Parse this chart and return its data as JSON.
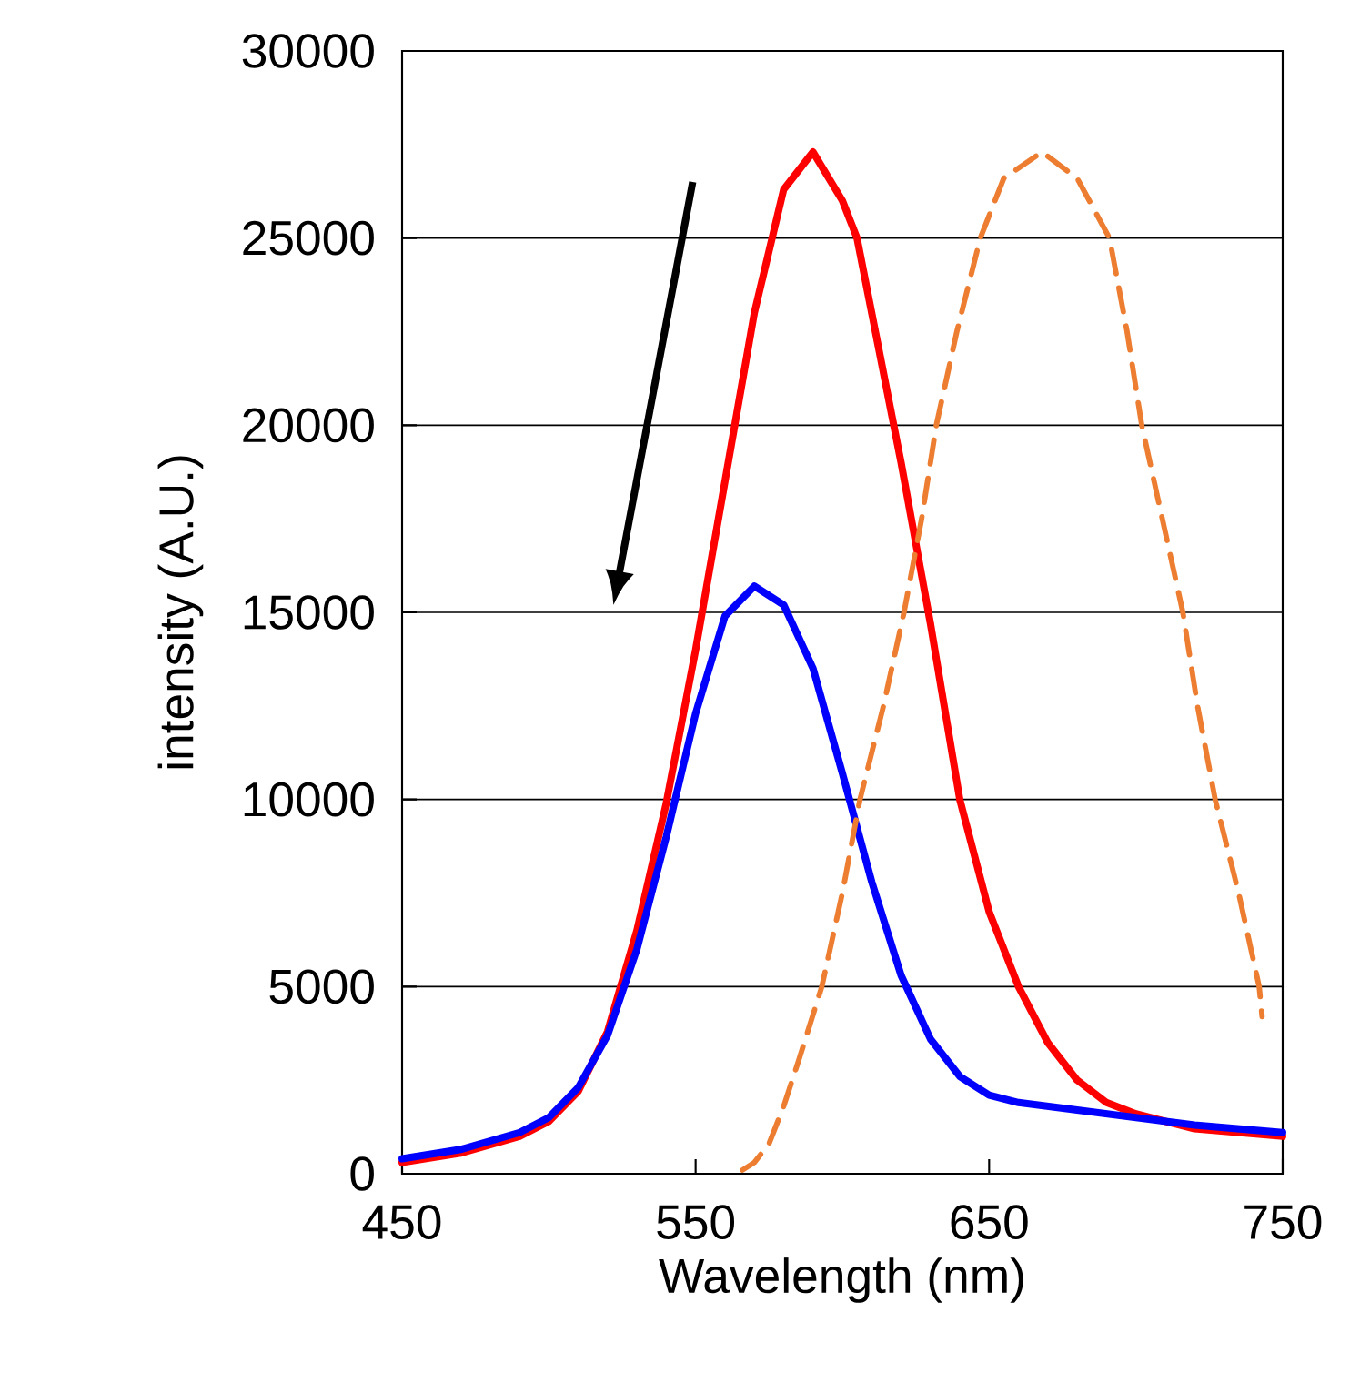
{
  "chart_data": {
    "type": "line",
    "xlabel": "Wavelength (nm)",
    "ylabel": "intensity (A.U.)",
    "xlim": [
      450,
      750
    ],
    "ylim": [
      0,
      30000
    ],
    "xticks": [
      450,
      550,
      650,
      750
    ],
    "yticks": [
      0,
      5000,
      10000,
      15000,
      20000,
      25000,
      30000
    ],
    "grid": "y",
    "marker": "none",
    "series": [
      {
        "color": "#ff0000",
        "line_style": "solid",
        "x": [
          450,
          470,
          490,
          500,
          510,
          520,
          530,
          540,
          550,
          560,
          570,
          580,
          590,
          600,
          605,
          610,
          620,
          630,
          640,
          650,
          660,
          670,
          680,
          690,
          700,
          720,
          750
        ],
        "values": [
          300,
          550,
          1000,
          1400,
          2200,
          3800,
          6500,
          9900,
          14000,
          18500,
          23000,
          26300,
          27300,
          26000,
          25000,
          23000,
          19000,
          14700,
          10000,
          7000,
          5000,
          3500,
          2500,
          1900,
          1600,
          1200,
          1000
        ]
      },
      {
        "color": "#0000ff",
        "line_style": "solid",
        "x": [
          450,
          470,
          490,
          500,
          510,
          520,
          530,
          540,
          550,
          560,
          570,
          580,
          590,
          600,
          610,
          620,
          630,
          640,
          650,
          660,
          680,
          700,
          720,
          750
        ],
        "values": [
          400,
          650,
          1100,
          1500,
          2300,
          3700,
          6000,
          9000,
          12300,
          14900,
          15700,
          15200,
          13500,
          10700,
          7800,
          5300,
          3600,
          2600,
          2100,
          1900,
          1700,
          1500,
          1300,
          1100
        ]
      },
      {
        "color": "#ed7d31",
        "line_style": "dashed",
        "x": [
          566,
          570,
          575,
          580,
          585,
          593,
          600,
          606,
          614,
          621,
          627,
          632,
          639,
          647,
          655,
          668,
          680,
          691,
          697,
          702,
          709,
          716,
          721,
          727,
          735,
          742,
          743
        ],
        "values": [
          100,
          300,
          800,
          1800,
          3000,
          5000,
          7500,
          10000,
          12500,
          15000,
          17500,
          20000,
          22500,
          25000,
          26600,
          27300,
          26600,
          25000,
          22500,
          20000,
          17500,
          15000,
          12500,
          10000,
          7500,
          5000,
          4200
        ]
      }
    ]
  }
}
